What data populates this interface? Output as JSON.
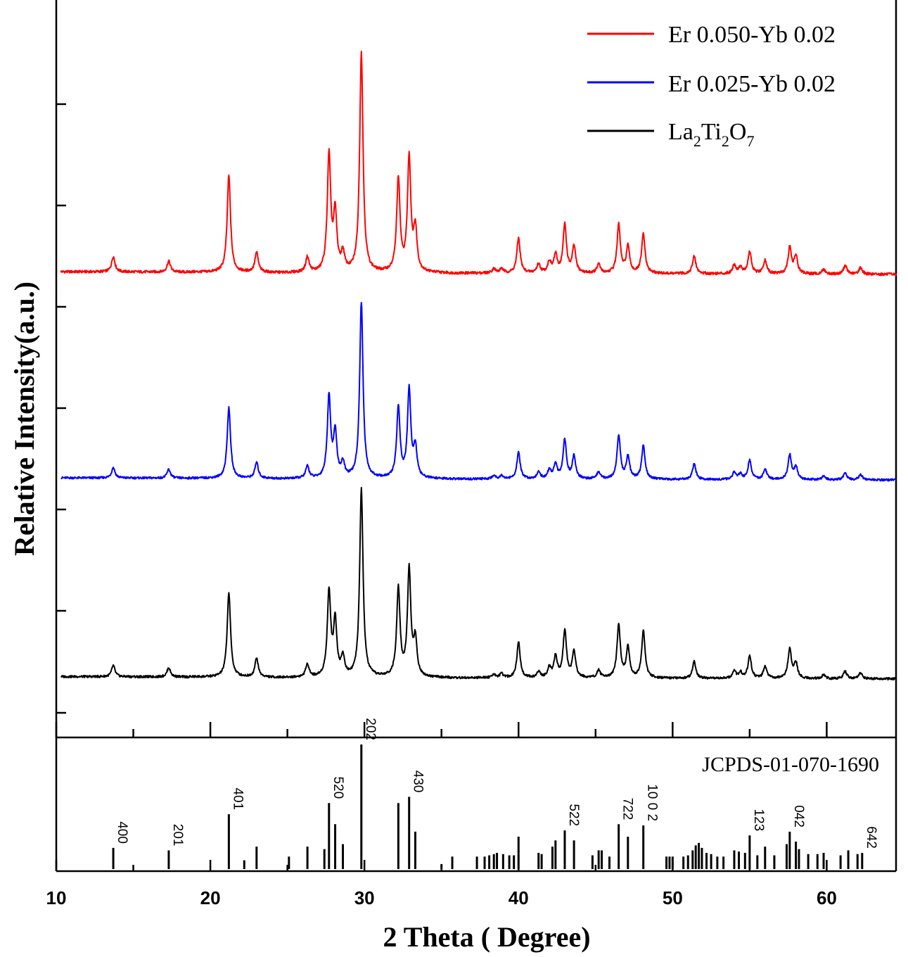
{
  "chart_data": {
    "type": "line",
    "xlabel": "2 Theta ( Degree)",
    "ylabel": "Relative Intensity(a.u.)",
    "xlim": [
      10,
      64.5
    ],
    "x_ticks": [
      10,
      20,
      30,
      40,
      50,
      60
    ],
    "x_tick_labels": [
      "10",
      "20",
      "30",
      "40",
      "50",
      "60"
    ],
    "legend_position": "top-right",
    "series": [
      {
        "name": "Er 0.050-Yb 0.02",
        "legend_main": "Er 0.050-Yb 0.02",
        "color": "#ff0000",
        "baseline": 0.02,
        "peaks": [
          [
            13.7,
            0.07
          ],
          [
            17.3,
            0.05
          ],
          [
            21.2,
            0.44
          ],
          [
            23.0,
            0.09
          ],
          [
            26.3,
            0.07
          ],
          [
            27.7,
            0.53
          ],
          [
            28.1,
            0.26
          ],
          [
            28.6,
            0.08
          ],
          [
            29.8,
            1.0
          ],
          [
            32.2,
            0.42
          ],
          [
            32.9,
            0.52
          ],
          [
            33.3,
            0.19
          ],
          [
            38.4,
            0.02
          ],
          [
            38.9,
            0.02
          ],
          [
            40.0,
            0.16
          ],
          [
            41.3,
            0.04
          ],
          [
            42.0,
            0.05
          ],
          [
            42.4,
            0.08
          ],
          [
            43.0,
            0.22
          ],
          [
            43.6,
            0.12
          ],
          [
            45.2,
            0.04
          ],
          [
            46.5,
            0.22
          ],
          [
            47.1,
            0.12
          ],
          [
            48.1,
            0.18
          ],
          [
            51.4,
            0.08
          ],
          [
            54.0,
            0.04
          ],
          [
            54.4,
            0.03
          ],
          [
            55.0,
            0.1
          ],
          [
            56.0,
            0.06
          ],
          [
            57.6,
            0.12
          ],
          [
            58.0,
            0.08
          ],
          [
            59.8,
            0.02
          ],
          [
            61.2,
            0.04
          ],
          [
            62.2,
            0.03
          ]
        ]
      },
      {
        "name": "Er 0.025-Yb 0.02",
        "legend_main": "Er 0.025-Yb 0.02",
        "color": "#0000ff",
        "baseline": 0.02,
        "peaks": [
          [
            13.7,
            0.06
          ],
          [
            17.3,
            0.05
          ],
          [
            21.2,
            0.4
          ],
          [
            23.0,
            0.09
          ],
          [
            26.3,
            0.07
          ],
          [
            27.7,
            0.46
          ],
          [
            28.1,
            0.25
          ],
          [
            28.6,
            0.08
          ],
          [
            29.8,
            1.0
          ],
          [
            32.2,
            0.4
          ],
          [
            32.9,
            0.5
          ],
          [
            33.3,
            0.17
          ],
          [
            38.4,
            0.02
          ],
          [
            38.9,
            0.02
          ],
          [
            40.0,
            0.15
          ],
          [
            41.3,
            0.04
          ],
          [
            42.0,
            0.05
          ],
          [
            42.4,
            0.08
          ],
          [
            43.0,
            0.22
          ],
          [
            43.6,
            0.13
          ],
          [
            45.2,
            0.04
          ],
          [
            46.5,
            0.25
          ],
          [
            47.1,
            0.13
          ],
          [
            48.1,
            0.19
          ],
          [
            51.4,
            0.09
          ],
          [
            54.0,
            0.04
          ],
          [
            54.4,
            0.03
          ],
          [
            55.0,
            0.11
          ],
          [
            56.0,
            0.06
          ],
          [
            57.6,
            0.14
          ],
          [
            58.0,
            0.07
          ],
          [
            59.8,
            0.02
          ],
          [
            61.2,
            0.04
          ],
          [
            62.2,
            0.03
          ]
        ]
      },
      {
        "name": "La2Ti2O7",
        "legend_main": "La",
        "legend_sub1": "2",
        "legend_mid1": "Ti",
        "legend_sub2": "2",
        "legend_mid2": "O",
        "legend_sub3": "7",
        "color": "#000000",
        "baseline": 0.02,
        "peaks": [
          [
            13.7,
            0.06
          ],
          [
            17.3,
            0.05
          ],
          [
            21.2,
            0.45
          ],
          [
            23.0,
            0.1
          ],
          [
            26.3,
            0.07
          ],
          [
            27.7,
            0.45
          ],
          [
            28.1,
            0.29
          ],
          [
            28.6,
            0.1
          ],
          [
            29.8,
            1.0
          ],
          [
            32.2,
            0.47
          ],
          [
            32.9,
            0.57
          ],
          [
            33.3,
            0.19
          ],
          [
            38.4,
            0.02
          ],
          [
            38.9,
            0.02
          ],
          [
            40.0,
            0.19
          ],
          [
            41.3,
            0.03
          ],
          [
            42.0,
            0.05
          ],
          [
            42.4,
            0.11
          ],
          [
            43.0,
            0.25
          ],
          [
            43.6,
            0.14
          ],
          [
            45.2,
            0.04
          ],
          [
            46.5,
            0.28
          ],
          [
            47.1,
            0.16
          ],
          [
            48.1,
            0.25
          ],
          [
            51.4,
            0.09
          ],
          [
            54.0,
            0.04
          ],
          [
            54.4,
            0.03
          ],
          [
            55.0,
            0.12
          ],
          [
            56.0,
            0.06
          ],
          [
            57.6,
            0.16
          ],
          [
            58.0,
            0.08
          ],
          [
            59.8,
            0.02
          ],
          [
            61.2,
            0.04
          ],
          [
            62.2,
            0.03
          ]
        ]
      }
    ],
    "reference": {
      "label": "JCPDS-01-070-1690",
      "lines": [
        {
          "x": 13.7,
          "h": 0.17,
          "label": "400"
        },
        {
          "x": 17.3,
          "h": 0.15,
          "label": "201"
        },
        {
          "x": 21.2,
          "h": 0.44,
          "label": "401"
        },
        {
          "x": 22.2,
          "h": 0.07
        },
        {
          "x": 23.0,
          "h": 0.18
        },
        {
          "x": 25.1,
          "h": 0.1
        },
        {
          "x": 26.3,
          "h": 0.18
        },
        {
          "x": 27.4,
          "h": 0.16
        },
        {
          "x": 27.7,
          "h": 0.53,
          "label": "520"
        },
        {
          "x": 28.1,
          "h": 0.36
        },
        {
          "x": 28.6,
          "h": 0.2
        },
        {
          "x": 29.8,
          "h": 1.0,
          "label": "202"
        },
        {
          "x": 32.2,
          "h": 0.53
        },
        {
          "x": 32.9,
          "h": 0.58,
          "label": "430"
        },
        {
          "x": 33.3,
          "h": 0.3
        },
        {
          "x": 35.0,
          "h": 0.04
        },
        {
          "x": 35.7,
          "h": 0.1
        },
        {
          "x": 37.3,
          "h": 0.1
        },
        {
          "x": 37.8,
          "h": 0.1
        },
        {
          "x": 38.1,
          "h": 0.11
        },
        {
          "x": 38.4,
          "h": 0.12
        },
        {
          "x": 38.6,
          "h": 0.13
        },
        {
          "x": 39.0,
          "h": 0.12
        },
        {
          "x": 39.4,
          "h": 0.11
        },
        {
          "x": 39.7,
          "h": 0.11
        },
        {
          "x": 40.0,
          "h": 0.26
        },
        {
          "x": 41.3,
          "h": 0.13
        },
        {
          "x": 41.5,
          "h": 0.12
        },
        {
          "x": 42.2,
          "h": 0.18
        },
        {
          "x": 42.4,
          "h": 0.23
        },
        {
          "x": 43.0,
          "h": 0.31,
          "label": "522"
        },
        {
          "x": 43.6,
          "h": 0.23
        },
        {
          "x": 44.8,
          "h": 0.11
        },
        {
          "x": 45.2,
          "h": 0.15
        },
        {
          "x": 45.4,
          "h": 0.15
        },
        {
          "x": 45.9,
          "h": 0.1
        },
        {
          "x": 46.5,
          "h": 0.36,
          "label": "722"
        },
        {
          "x": 47.1,
          "h": 0.26
        },
        {
          "x": 48.1,
          "h": 0.35,
          "label": "10 0 2"
        },
        {
          "x": 49.6,
          "h": 0.1
        },
        {
          "x": 49.8,
          "h": 0.1
        },
        {
          "x": 50.0,
          "h": 0.1
        },
        {
          "x": 50.7,
          "h": 0.1
        },
        {
          "x": 51.0,
          "h": 0.11
        },
        {
          "x": 51.3,
          "h": 0.15
        },
        {
          "x": 51.5,
          "h": 0.19
        },
        {
          "x": 51.7,
          "h": 0.21
        },
        {
          "x": 51.9,
          "h": 0.17
        },
        {
          "x": 52.2,
          "h": 0.13
        },
        {
          "x": 52.5,
          "h": 0.12
        },
        {
          "x": 52.9,
          "h": 0.1
        },
        {
          "x": 53.3,
          "h": 0.1
        },
        {
          "x": 54.0,
          "h": 0.15
        },
        {
          "x": 54.3,
          "h": 0.14
        },
        {
          "x": 54.7,
          "h": 0.13
        },
        {
          "x": 55.0,
          "h": 0.27,
          "label": "123"
        },
        {
          "x": 55.5,
          "h": 0.11
        },
        {
          "x": 56.0,
          "h": 0.18
        },
        {
          "x": 56.6,
          "h": 0.11
        },
        {
          "x": 57.4,
          "h": 0.2
        },
        {
          "x": 57.6,
          "h": 0.3,
          "label": "042"
        },
        {
          "x": 58.0,
          "h": 0.22
        },
        {
          "x": 58.2,
          "h": 0.16
        },
        {
          "x": 58.8,
          "h": 0.12
        },
        {
          "x": 59.4,
          "h": 0.12
        },
        {
          "x": 59.8,
          "h": 0.13
        },
        {
          "x": 60.9,
          "h": 0.11
        },
        {
          "x": 61.4,
          "h": 0.15
        },
        {
          "x": 62.0,
          "h": 0.12
        },
        {
          "x": 62.3,
          "h": 0.13,
          "label": "642"
        }
      ]
    }
  }
}
